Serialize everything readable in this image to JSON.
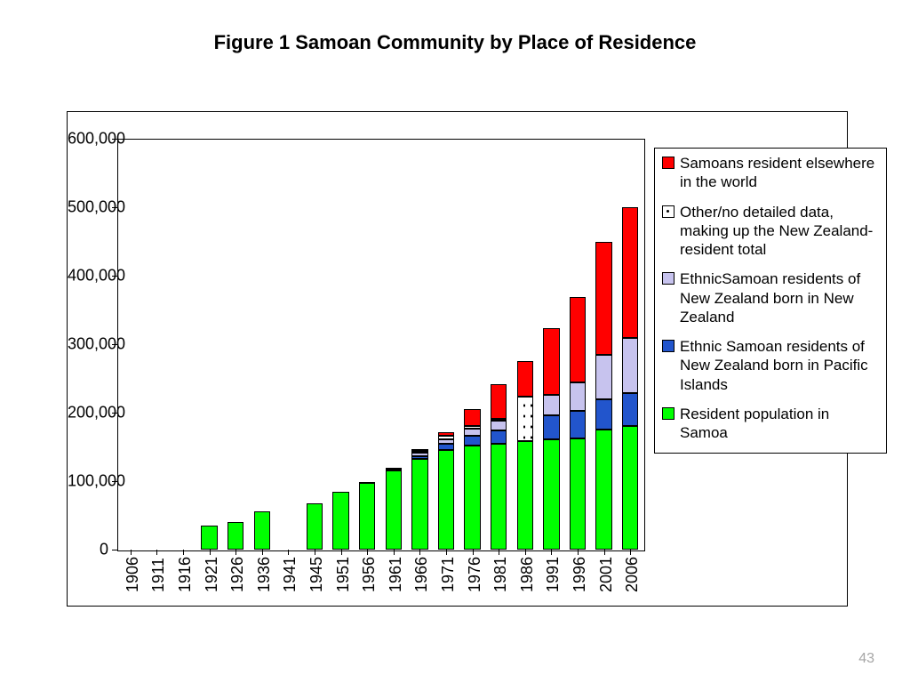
{
  "title": "Figure 1 Samoan Community by Place of Residence",
  "page_number": "43",
  "chart": {
    "type": "stacked-bar",
    "background_color": "#ffffff",
    "border_color": "#000000",
    "title_fontsize": 22,
    "axis_label_fontsize": 18,
    "legend_fontsize": 17,
    "ylim": [
      0,
      600000
    ],
    "ytick_step": 100000,
    "ytick_labels": [
      "0",
      "100,000",
      "200,000",
      "300,000",
      "400,000",
      "500,000",
      "600,000"
    ],
    "categories": [
      "1906",
      "1911",
      "1916",
      "1921",
      "1926",
      "1936",
      "1941",
      "1945",
      "1951",
      "1956",
      "1961",
      "1966",
      "1971",
      "1976",
      "1981",
      "1986",
      "1991",
      "1996",
      "2001",
      "2006"
    ],
    "bar_width_ratio": 0.62,
    "series": [
      {
        "key": "resident_samoa",
        "label": "Resident population in Samoa",
        "color": "#00ff00",
        "pattern": "solid",
        "values": [
          0,
          0,
          0,
          35000,
          40000,
          56000,
          0,
          68000,
          85000,
          98000,
          115000,
          132000,
          145000,
          152000,
          155000,
          158000,
          161000,
          162000,
          175000,
          181000
        ]
      },
      {
        "key": "nz_born_pacific",
        "label": "Ethnic Samoan residents of New Zealand born in Pacific Islands",
        "color": "#2255cc",
        "pattern": "solid",
        "values": [
          0,
          0,
          0,
          0,
          0,
          0,
          0,
          0,
          0,
          0,
          2000,
          5000,
          9000,
          14000,
          19000,
          0,
          35000,
          40000,
          45000,
          48000
        ]
      },
      {
        "key": "nz_born_nz",
        "label": "EthnicSamoan residents of New Zealand born in New Zealand",
        "color": "#c7c3ee",
        "pattern": "solid",
        "values": [
          0,
          0,
          0,
          0,
          0,
          0,
          0,
          0,
          0,
          0,
          1000,
          4000,
          7000,
          11000,
          14000,
          0,
          30000,
          42000,
          65000,
          80000
        ]
      },
      {
        "key": "other_nz_total",
        "label": "Other/no detailed data, making up the New Zealand-resident total",
        "color": "#ffffff",
        "pattern": "dotted",
        "values": [
          0,
          0,
          0,
          0,
          0,
          0,
          0,
          0,
          0,
          1000,
          2000,
          3000,
          5000,
          3000,
          3000,
          66000,
          0,
          0,
          0,
          0
        ]
      },
      {
        "key": "elsewhere_world",
        "label": "Samoans resident elsewhere in the world",
        "color": "#ff0000",
        "pattern": "solid",
        "values": [
          0,
          0,
          0,
          0,
          0,
          0,
          0,
          0,
          0,
          0,
          0,
          3000,
          6000,
          25000,
          51000,
          51000,
          98000,
          125000,
          165000,
          191000
        ]
      }
    ],
    "legend_order": [
      "elsewhere_world",
      "other_nz_total",
      "nz_born_nz",
      "nz_born_pacific",
      "resident_samoa"
    ]
  }
}
